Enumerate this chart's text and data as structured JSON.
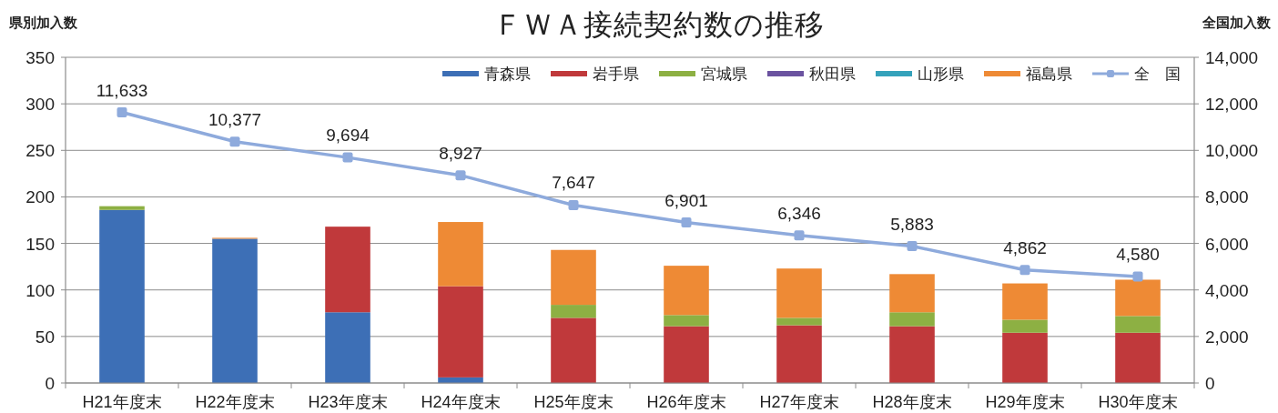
{
  "chart_data": {
    "type": "bar",
    "stacked": true,
    "title": "ＦＷＡ接続契約数の推移",
    "ylabel": "県別加入数",
    "y2label": "全国加入数",
    "categories": [
      "H21年度末",
      "H22年度末",
      "H23年度末",
      "H24年度末",
      "H25年度末",
      "H26年度末",
      "H27年度末",
      "H28年度末",
      "H29年度末",
      "H30年度末"
    ],
    "series": [
      {
        "name": "青森県",
        "color": "#3d6fb6",
        "values": [
          186,
          155,
          76,
          6,
          0,
          0,
          0,
          0,
          0,
          0
        ]
      },
      {
        "name": "岩手県",
        "color": "#c0393b",
        "values": [
          0,
          0,
          92,
          98,
          70,
          61,
          62,
          61,
          54,
          54
        ]
      },
      {
        "name": "宮城県",
        "color": "#8db043",
        "values": [
          4,
          0,
          0,
          0,
          14,
          12,
          8,
          15,
          14,
          18
        ]
      },
      {
        "name": "秋田県",
        "color": "#6b53a0",
        "values": [
          0,
          0,
          0,
          0,
          0,
          0,
          0,
          0,
          0,
          0
        ]
      },
      {
        "name": "山形県",
        "color": "#35a2bb",
        "values": [
          0,
          0,
          0,
          0,
          0,
          0,
          0,
          0,
          0,
          0
        ]
      },
      {
        "name": "福島県",
        "color": "#ee8a35",
        "values": [
          0,
          1,
          0,
          69,
          59,
          53,
          53,
          41,
          39,
          39
        ]
      },
      {
        "name": "全　国",
        "type": "line",
        "axis": "y2",
        "color": "#8eaadc",
        "marker": "square",
        "values": [
          11633,
          10377,
          9694,
          8927,
          7647,
          6901,
          6346,
          5883,
          4862,
          4580
        ],
        "value_labels": [
          "11,633",
          "10,377",
          "9,694",
          "8,927",
          "7,647",
          "6,901",
          "6,346",
          "5,883",
          "4,862",
          "4,580"
        ]
      }
    ],
    "ylim": [
      0,
      350
    ],
    "yticks": [
      0,
      50,
      100,
      150,
      200,
      250,
      300,
      350
    ],
    "y2lim": [
      0,
      14000
    ],
    "y2ticks": [
      0,
      {
        "value": 2000,
        "label": "2,000"
      },
      {
        "value": 4000,
        "label": "4,000"
      },
      {
        "value": 6000,
        "label": "6,000"
      },
      {
        "value": 8000,
        "label": "8,000"
      },
      {
        "value": 10000,
        "label": "10,000"
      },
      {
        "value": 12000,
        "label": "12,000"
      },
      {
        "value": 14000,
        "label": "14,000"
      }
    ],
    "grid": "y",
    "legend": "top right"
  }
}
